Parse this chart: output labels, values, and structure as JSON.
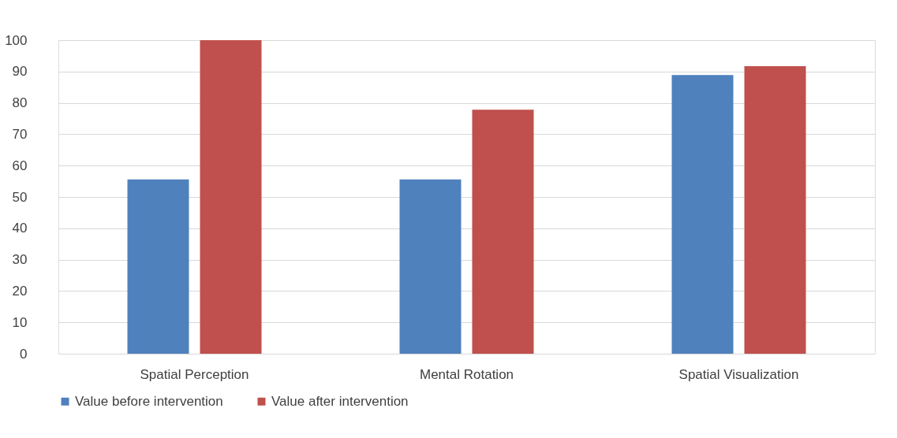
{
  "chart_data": {
    "type": "bar",
    "categories": [
      "Spatial Perception",
      "Mental Rotation",
      "Spatial Visualization"
    ],
    "series": [
      {
        "name": "Value before intervention",
        "color": "#4f81bd",
        "values": [
          55.6,
          55.6,
          88.9
        ]
      },
      {
        "name": "Value after intervention",
        "color": "#c0504d",
        "values": [
          100,
          77.8,
          91.7
        ]
      }
    ],
    "ylim": [
      0,
      100
    ],
    "yticks": [
      0,
      10,
      20,
      30,
      40,
      50,
      60,
      70,
      80,
      90,
      100
    ],
    "grid": "y",
    "legend": "bottom"
  }
}
